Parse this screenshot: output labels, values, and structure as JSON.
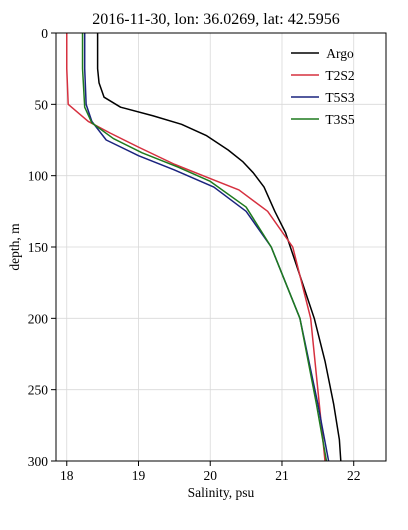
{
  "chart_data": {
    "type": "line",
    "title": "2016-11-30, lon: 36.0269,  lat: 42.5956",
    "xlabel": "Salinity, psu",
    "ylabel": "depth, m",
    "xlim": [
      17.85,
      22.45
    ],
    "ylim": [
      300,
      0
    ],
    "y_inverted": true,
    "grid": true,
    "legend_position": "top-right",
    "xticks": [
      18,
      19,
      20,
      21,
      22
    ],
    "yticks": [
      0,
      50,
      100,
      150,
      200,
      250,
      300
    ],
    "series": [
      {
        "name": "Argo",
        "color": "#000000",
        "points": [
          [
            18.43,
            0
          ],
          [
            18.43,
            25
          ],
          [
            18.45,
            35
          ],
          [
            18.52,
            45
          ],
          [
            18.75,
            52
          ],
          [
            19.2,
            58
          ],
          [
            19.6,
            64
          ],
          [
            19.95,
            72
          ],
          [
            20.25,
            82
          ],
          [
            20.45,
            90
          ],
          [
            20.6,
            98
          ],
          [
            20.75,
            108
          ],
          [
            20.9,
            125
          ],
          [
            21.05,
            140
          ],
          [
            21.15,
            155
          ],
          [
            21.25,
            170
          ],
          [
            21.45,
            200
          ],
          [
            21.6,
            230
          ],
          [
            21.72,
            260
          ],
          [
            21.8,
            285
          ],
          [
            21.82,
            300
          ]
        ]
      },
      {
        "name": "T2S2",
        "color": "#d6303f",
        "points": [
          [
            18.0,
            0
          ],
          [
            18.0,
            25
          ],
          [
            18.02,
            50
          ],
          [
            18.3,
            62
          ],
          [
            18.6,
            70
          ],
          [
            19.0,
            80
          ],
          [
            19.5,
            92
          ],
          [
            20.0,
            102
          ],
          [
            20.4,
            110
          ],
          [
            20.8,
            125
          ],
          [
            21.15,
            150
          ],
          [
            21.4,
            200
          ],
          [
            21.55,
            275
          ],
          [
            21.6,
            300
          ]
        ]
      },
      {
        "name": "T5S3",
        "color": "#1a237e",
        "points": [
          [
            18.25,
            0
          ],
          [
            18.25,
            25
          ],
          [
            18.27,
            50
          ],
          [
            18.35,
            62
          ],
          [
            18.55,
            75
          ],
          [
            19.0,
            86
          ],
          [
            19.5,
            96
          ],
          [
            20.05,
            108
          ],
          [
            20.5,
            125
          ],
          [
            20.85,
            150
          ],
          [
            21.25,
            200
          ],
          [
            21.5,
            260
          ],
          [
            21.65,
            300
          ]
        ]
      },
      {
        "name": "T3S5",
        "color": "#1e7a1e",
        "points": [
          [
            18.22,
            0
          ],
          [
            18.22,
            25
          ],
          [
            18.25,
            52
          ],
          [
            18.35,
            63
          ],
          [
            18.65,
            74
          ],
          [
            19.05,
            84
          ],
          [
            19.55,
            94
          ],
          [
            20.0,
            104
          ],
          [
            20.5,
            122
          ],
          [
            20.85,
            150
          ],
          [
            21.25,
            200
          ],
          [
            21.48,
            260
          ],
          [
            21.62,
            300
          ]
        ]
      }
    ]
  }
}
